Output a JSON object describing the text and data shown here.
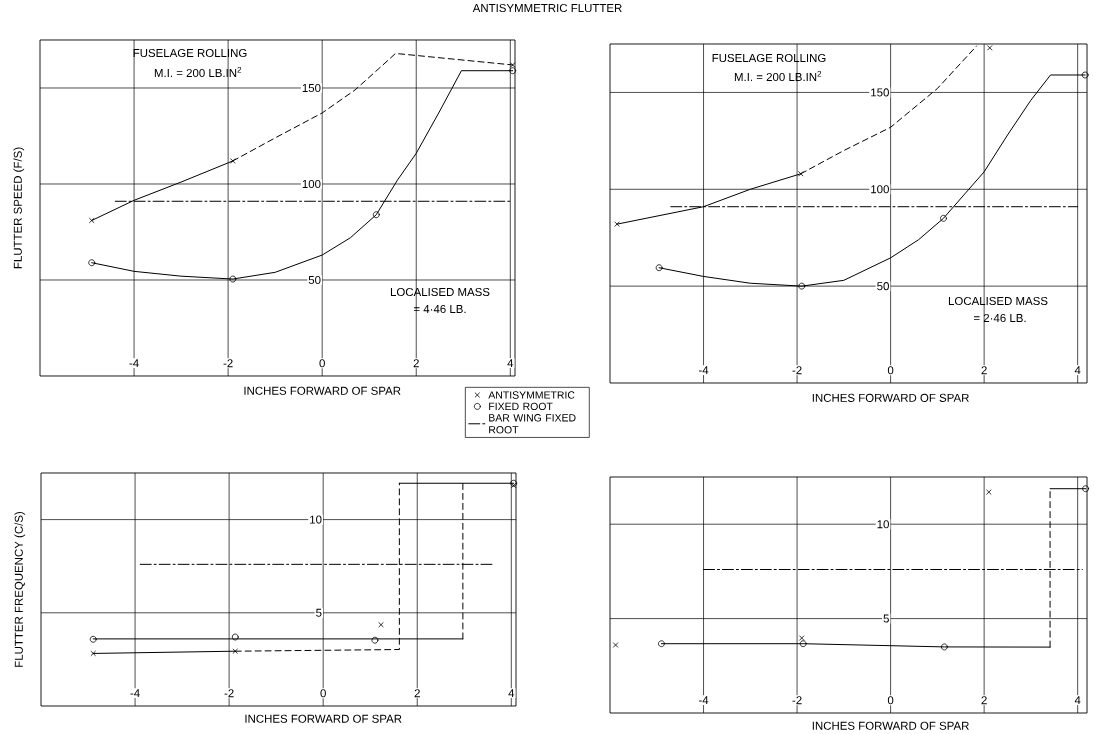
{
  "chart_data": [
    {
      "type": "line",
      "title": "ANTISYMMETRIC FLUTTER",
      "xlabel": "INCHES FORWARD OF SPAR",
      "ylabel": "FLUTTER SPEED (F/S)",
      "xlim": [
        -6,
        4.1
      ],
      "ylim": [
        0,
        175
      ],
      "xticks": [
        -4,
        -2,
        0,
        2,
        4
      ],
      "yticks": [
        50,
        100,
        150
      ],
      "grid": true,
      "legend": "bottom right",
      "annotations": [
        "FUSELAGE ROLLING",
        "M.I. = 200 LB.IN$^{2}$",
        "LOCALISED MASS",
        "= 4·46 LB."
      ],
      "series": [
        {
          "type": "scatter",
          "name": "ANTISYMMETRIC",
          "color": "#000000",
          "marker": "cross",
          "x": [
            -4.9,
            -1.9,
            4.05
          ],
          "values": [
            81,
            112,
            162
          ]
        },
        {
          "type": "scatter",
          "name": "FIXED ROOT",
          "color": "#000000",
          "marker": "circle",
          "x": [
            -4.9,
            -1.9,
            1.15,
            4.05
          ],
          "values": [
            59,
            50.5,
            84,
            159
          ]
        },
        {
          "name": "BAR WING FIXED ROOT",
          "color": "#000000",
          "line_style": "dashdot",
          "x": [
            -4.4,
            4.0
          ],
          "values": [
            91,
            91
          ]
        },
        {
          "color": "#000000",
          "line_style": "solid",
          "x": [
            -4.9,
            -4,
            -3,
            -1.9
          ],
          "values": [
            81,
            91.5,
            101,
            112
          ]
        },
        {
          "color": "#000000",
          "line_style": "dashed",
          "x": [
            -1.9,
            -1,
            0,
            0.7,
            1.2,
            1.56,
            4.05
          ],
          "values": [
            112,
            124,
            137,
            149,
            160,
            168,
            162
          ]
        },
        {
          "color": "#000000",
          "line_style": "solid",
          "x": [
            -4.9,
            -4,
            -3,
            -1.9,
            -1,
            0,
            0.6,
            1.15,
            1.6,
            2,
            2.5,
            2.96,
            4.05
          ],
          "values": [
            59,
            54.5,
            52,
            50.5,
            54,
            63,
            72,
            84,
            102,
            116,
            138,
            159,
            159
          ]
        }
      ]
    },
    {
      "type": "line",
      "xlabel": "INCHES FORWARD OF SPAR",
      "xlim": [
        -6,
        4.2
      ],
      "ylim": [
        0,
        175
      ],
      "xticks": [
        -4,
        -2,
        0,
        2,
        4
      ],
      "yticks": [
        50,
        100,
        150
      ],
      "grid": true,
      "annotations": [
        "FUSELAGE ROLLING",
        "M.I. = 200 LB.IN$^{2}$",
        "LOCALISED MASS",
        "= 2·46 LB."
      ],
      "series": [
        {
          "type": "scatter",
          "color": "#000000",
          "marker": "cross",
          "x": [
            -5.85,
            -1.92,
            2.12
          ],
          "values": [
            82,
            108,
            173
          ]
        },
        {
          "type": "scatter",
          "color": "#000000",
          "marker": "circle",
          "x": [
            -4.95,
            -1.9,
            1.13,
            4.16
          ],
          "values": [
            59.5,
            50,
            85,
            159
          ]
        },
        {
          "color": "#000000",
          "line_style": "dashdot",
          "x": [
            -4.7,
            4.0
          ],
          "values": [
            91,
            91
          ]
        },
        {
          "color": "#000000",
          "line_style": "solid",
          "x": [
            -5.85,
            -4,
            -3,
            -1.92
          ],
          "values": [
            82,
            91,
            100,
            108
          ]
        },
        {
          "color": "#000000",
          "line_style": "dashed",
          "x": [
            -1.92,
            -1,
            0,
            1,
            1.84
          ],
          "values": [
            108,
            120,
            132,
            152,
            174
          ]
        },
        {
          "color": "#000000",
          "line_style": "solid",
          "x": [
            -4.95,
            -4,
            -3,
            -1.9,
            -1,
            0,
            0.6,
            1.13,
            1.6,
            2,
            2.5,
            3.0,
            3.42,
            4.16
          ],
          "values": [
            59.5,
            55,
            51.5,
            50,
            53,
            64.6,
            74,
            85,
            98,
            109,
            128,
            146,
            159,
            159
          ]
        }
      ]
    },
    {
      "type": "line",
      "xlabel": "INCHES FORWARD OF SPAR",
      "ylabel": "FLUTTER FREQUENCY (C/S)",
      "xlim": [
        -6,
        4.1
      ],
      "ylim": [
        0,
        12.5
      ],
      "xticks": [
        -4,
        -2,
        0,
        2,
        4
      ],
      "yticks": [
        5,
        10
      ],
      "grid": true,
      "series": [
        {
          "type": "scatter",
          "color": "#000000",
          "marker": "cross",
          "x": [
            -4.89,
            -1.87,
            1.23,
            4.05
          ],
          "values": [
            2.82,
            2.94,
            4.36,
            11.83
          ]
        },
        {
          "type": "scatter",
          "color": "#000000",
          "marker": "circle",
          "x": [
            -4.89,
            -1.87,
            1.1,
            4.05
          ],
          "values": [
            3.58,
            3.7,
            3.53,
            11.95
          ]
        },
        {
          "color": "#000000",
          "line_style": "dashdot",
          "x": [
            -3.89,
            3.65
          ],
          "values": [
            7.6,
            7.6
          ]
        },
        {
          "color": "#000000",
          "line_style": "solid",
          "x": [
            -4.89,
            -1.87
          ],
          "values": [
            2.82,
            2.94
          ]
        },
        {
          "color": "#000000",
          "line_style": "dashed",
          "x": [
            -1.87,
            1.62,
            1.62
          ],
          "values": [
            2.94,
            3.03,
            11.95
          ]
        },
        {
          "color": "#000000",
          "line_style": "solid",
          "x": [
            1.62,
            4.05
          ],
          "values": [
            11.95,
            11.95
          ]
        },
        {
          "color": "#000000",
          "line_style": "solid",
          "x": [
            -4.89,
            2.97
          ],
          "values": [
            3.6,
            3.6
          ]
        },
        {
          "color": "#000000",
          "line_style": "dashed",
          "x": [
            2.97,
            2.97
          ],
          "values": [
            3.6,
            11.95
          ]
        }
      ]
    },
    {
      "type": "line",
      "xlabel": "INCHES FORWARD OF SPAR",
      "xlim": [
        -6,
        4.2
      ],
      "ylim": [
        0,
        12.5
      ],
      "xticks": [
        -4,
        -2,
        0,
        2,
        4
      ],
      "yticks": [
        5,
        10
      ],
      "grid": true,
      "series": [
        {
          "type": "scatter",
          "color": "#000000",
          "marker": "cross",
          "x": [
            -5.88,
            -1.9,
            2.1
          ],
          "values": [
            3.6,
            3.97,
            11.7
          ]
        },
        {
          "type": "scatter",
          "color": "#000000",
          "marker": "circle",
          "x": [
            -4.9,
            -1.87,
            1.15,
            4.17
          ],
          "values": [
            3.67,
            3.67,
            3.5,
            11.88
          ]
        },
        {
          "color": "#000000",
          "line_style": "dashdot",
          "x": [
            -4,
            4.1
          ],
          "values": [
            7.6,
            7.6
          ]
        },
        {
          "color": "#000000",
          "line_style": "solid",
          "x": [
            -4.9,
            -1.87,
            1.15,
            3.41
          ],
          "values": [
            3.67,
            3.67,
            3.5,
            3.49
          ]
        },
        {
          "color": "#000000",
          "line_style": "dashed",
          "x": [
            3.41,
            3.41
          ],
          "values": [
            3.49,
            11.88
          ]
        },
        {
          "color": "#000000",
          "line_style": "solid",
          "x": [
            3.41,
            4.17
          ],
          "values": [
            11.88,
            11.88
          ]
        }
      ]
    }
  ]
}
